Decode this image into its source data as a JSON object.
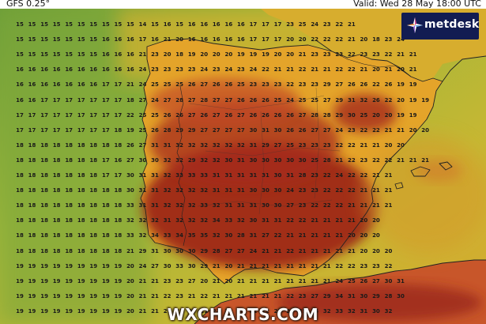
{
  "header": {
    "model": "GFS 0.25°",
    "valid": "Valid: Wed 28 May 18:00 UTC"
  },
  "logo": {
    "text": "metdesk",
    "icon": "metdesk-mark-icon",
    "color": "#121c52"
  },
  "watermark": {
    "text": "WXCHARTS.COM"
  },
  "map": {
    "variable": "temperature",
    "colors": {
      "sea_cool": "#7ea83a",
      "sea_warm": "#c9b733",
      "land_warm": "#e8a628",
      "land_hot": "#c8402a",
      "land_very_hot": "#8f1f1a",
      "coastline": "#222222"
    },
    "rows": [
      "15 15 15 15 15 15 15 15 15 15 14 15 16 15 16 16 16 16 16 17 17 17 23 25 24 23 22 21",
      "15 15 15 15 15 15 15 16 16 16 17 16 21 20 16 16 16 16 16 17 17 17 20 20 22 22 22 21 20 18 23 24",
      "15 15 15 15 15 15 15 16 16 16 21 23 20 18 19 20 20 20 19 19 19 20 20 21 23 23 23 22 23 23 22 21 21",
      "16 16 16 16 16 16 16 16 16 16 24 23 23 23 23 24 23 24 23 24 22 21 21 22 21 21 22 22 21 20 21 20 21",
      "16 16 16 16 16 16 16 17 17 21 24 25 25 25 26 27 26 26 25 23 23 23 22 23 23 29 27 26 26 22 26 19 19",
      "16 16 17 17 17 17 17 17 17 18 27 24 27 28 27 28 27 27 26 26 26 25 24 25 25 27 29 31 32 26 22 20 19 19",
      "17 17 17 17 17 17 17 17 17 22 25 25 26 26 27 26 27 26 27 26 26 26 26 27 28 28 29 30 25 20 20 19 19",
      "17 17 17 17 17 17 17 17 18 19 25 26 28 29 29 27 27 27 27 30 31 30 26 26 27 27 24 23 22 22 21 21 20 20",
      "18 18 18 18 18 18 18 18 18 26 27 31 31 32 32 32 32 32 32 31 29 27 25 23 23 23 22 22 21 21 20 20",
      "18 18 18 18 18 18 18 17 16 27 30 30 32 32 29 32 32 30 31 30 30 30 30 30 25 28 21 22 23 22 22 21 21 21",
      "18 18 18 18 18 18 18 17 17 30 31 31 32 33 33 33 31 31 31 31 31 30 31 28 23 22 24 22 22 21 21",
      "18 18 18 18 18 18 18 18 18 30 31 31 32 32 32 32 31 31 31 30 30 30 24 23 23 22 22 22 21 21 21",
      "18 18 18 18 18 18 18 18 18 33 31 31 32 32 32 33 32 31 31 31 30 30 27 23 22 22 22 21 21 21 21",
      "18 18 18 18 18 18 18 18 18 32 32 32 31 32 32 32 34 33 32 30 31 31 22 22 21 21 21 21 20 20",
      "18 18 18 18 18 18 18 18 18 33 32 34 33 34 35 35 32 30 28 31 27 22 21 21 21 21 21 20 20 20",
      "18 18 18 18 18 18 18 18 18 21 29 31 30 30 30 29 28 27 27 24 21 21 22 21 21 21 21 21 20 20 20",
      "19 19 19 19 19 19 19 19 19 20 24 27 30 33 30 29 21 20 21 21 21 21 21 21 21 21 22 22 23 23 22",
      "19 19 19 19 19 19 19 19 19 20 21 21 23 23 27 20 21 20 21 21 21 21 21 21 21 21 24 25 26 27 30 31",
      "19 19 19 19 19 19 19 19 19 20 21 21 22 23 21 22 21 21 21 21 21 21 22 23 27 29 34 31 30 29 28 30",
      "19 19 19 19 19 19 19 19 19 20 21 21 21 21 21 21 22 21 21 21 22 23 24 35 34 32 33 32 31 30 32",
      "19 19 19 19 19 19 19 19 19 19 20 21 22 22 23 24 24 24 24 24 33 34 32 32 32 30 30 29 30"
    ]
  }
}
